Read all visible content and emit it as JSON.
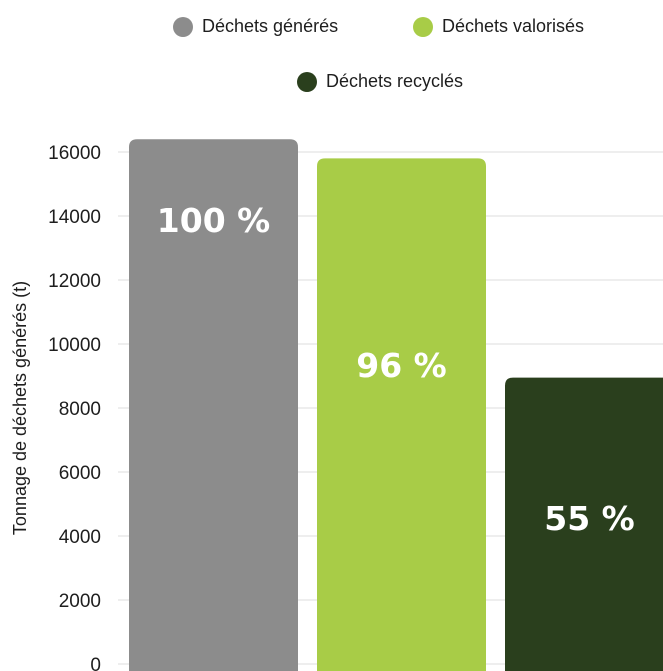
{
  "chart_data": {
    "type": "bar",
    "ylabel": "Tonnage de déchets générés (t)",
    "ylim": [
      0,
      16000
    ],
    "yticks": [
      0,
      2000,
      4000,
      6000,
      8000,
      10000,
      12000,
      14000,
      16000
    ],
    "grid": true,
    "legend_position": "top",
    "series": [
      {
        "name": "Déchets générés",
        "value": 16400,
        "label": "100 %",
        "color": "#8c8c8c"
      },
      {
        "name": "Déchets valorisés",
        "value": 15800,
        "label": "96 %",
        "color": "#a8cc47"
      },
      {
        "name": "Déchets recyclés",
        "value": 8950,
        "label": "55 %",
        "color": "#2a3f1d"
      }
    ]
  }
}
